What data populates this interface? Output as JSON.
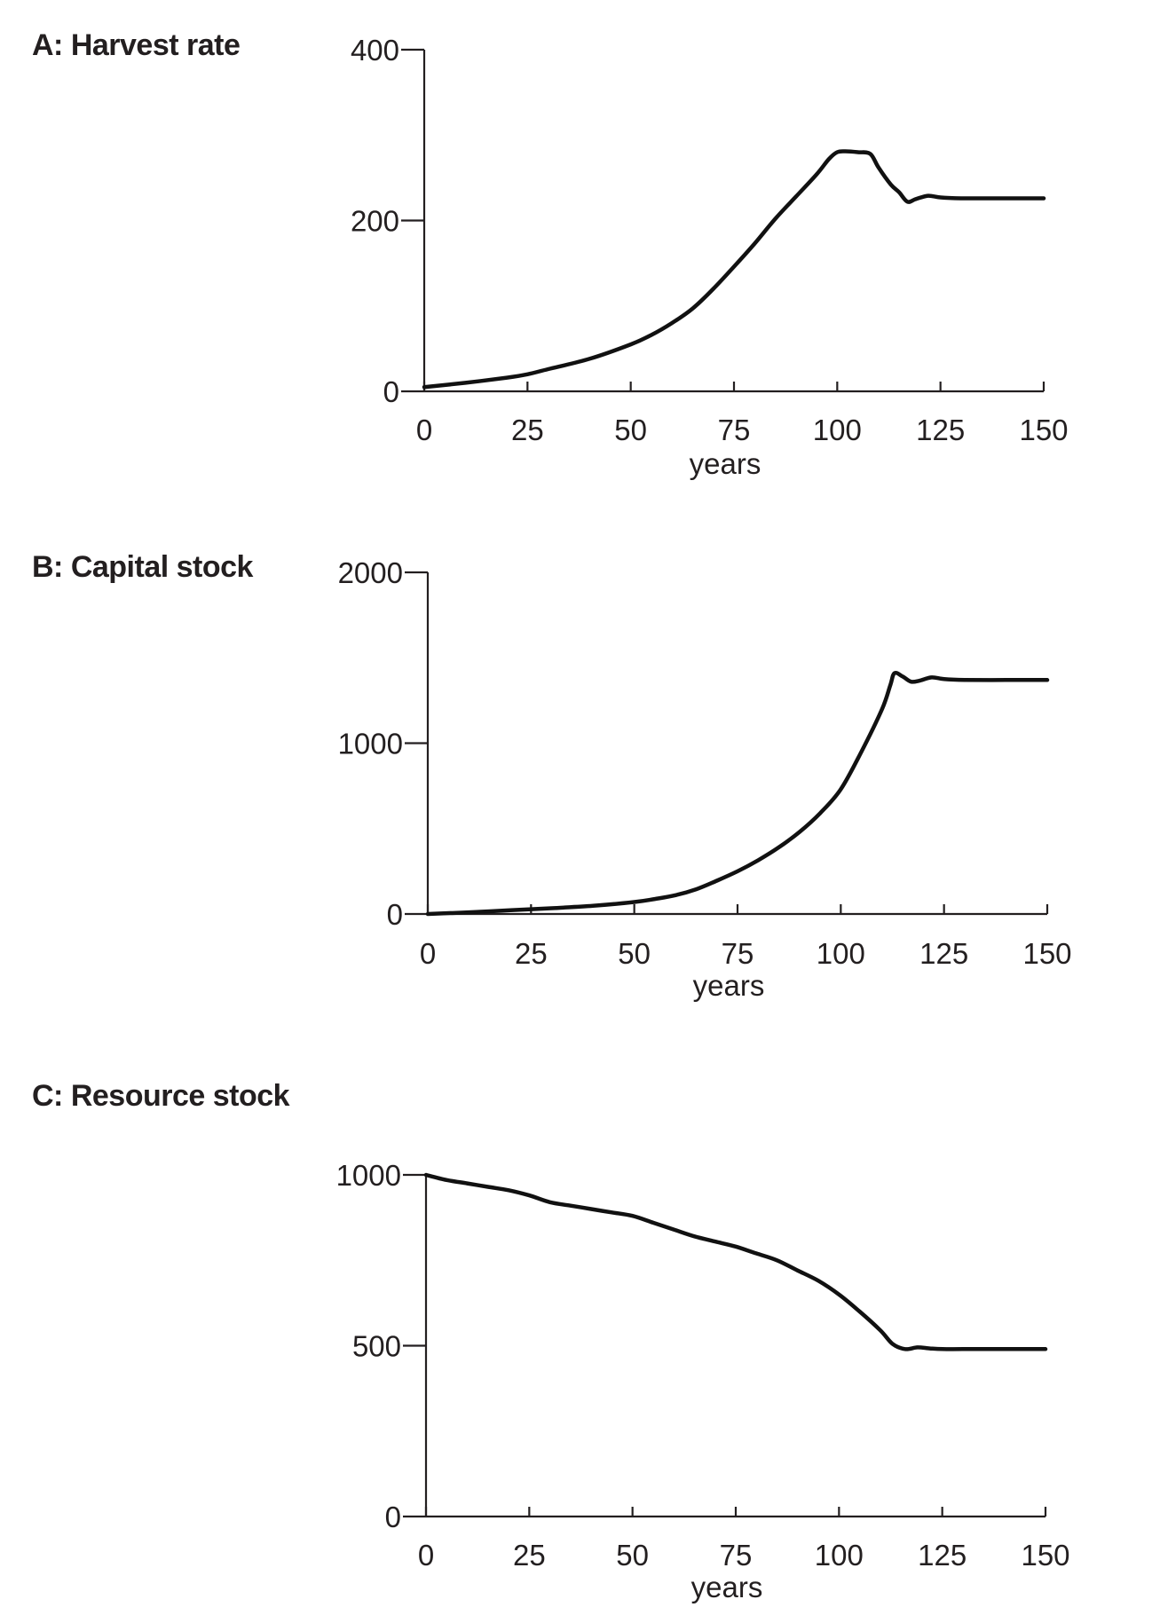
{
  "chart_data": [
    {
      "type": "line",
      "title": "A: Harvest rate",
      "xlabel": "years",
      "ylabel": "",
      "xlim": [
        0,
        150
      ],
      "ylim": [
        0,
        400
      ],
      "xticks": [
        0,
        25,
        50,
        75,
        100,
        125,
        150
      ],
      "yticks": [
        0,
        200,
        400
      ],
      "xtick_labels": [
        "0",
        "25",
        "50",
        "75",
        "100",
        "125",
        "150"
      ],
      "ytick_labels": [
        "0",
        "200",
        "400"
      ],
      "grid": false,
      "series": [
        {
          "x": [
            0,
            10,
            20,
            25,
            30,
            40,
            50,
            55,
            60,
            65,
            70,
            75,
            80,
            85,
            90,
            95,
            98,
            100,
            102,
            105,
            108,
            110,
            113,
            115,
            117,
            119,
            122,
            125,
            130,
            140,
            150
          ],
          "y": [
            5,
            10,
            16,
            20,
            26,
            38,
            55,
            66,
            80,
            97,
            120,
            146,
            173,
            202,
            228,
            254,
            272,
            280,
            281,
            280,
            278,
            262,
            242,
            233,
            222,
            225,
            229,
            227,
            226,
            226,
            226
          ]
        }
      ]
    },
    {
      "type": "line",
      "title": "B: Capital stock",
      "xlabel": "years",
      "ylabel": "",
      "xlim": [
        0,
        150
      ],
      "ylim": [
        0,
        2000
      ],
      "xticks": [
        0,
        25,
        50,
        75,
        100,
        125,
        150
      ],
      "yticks": [
        0,
        1000,
        2000
      ],
      "xtick_labels": [
        "0",
        "25",
        "50",
        "75",
        "100",
        "125",
        "150"
      ],
      "ytick_labels": [
        "0",
        "1000",
        "2000"
      ],
      "grid": false,
      "series": [
        {
          "x": [
            0,
            10,
            20,
            30,
            40,
            50,
            55,
            60,
            65,
            70,
            75,
            80,
            85,
            90,
            95,
            100,
            105,
            110,
            112,
            113,
            115,
            117,
            119,
            122,
            125,
            130,
            140,
            150
          ],
          "y": [
            0,
            10,
            22,
            34,
            48,
            70,
            88,
            110,
            145,
            195,
            250,
            315,
            390,
            480,
            590,
            730,
            950,
            1200,
            1340,
            1410,
            1390,
            1360,
            1365,
            1385,
            1375,
            1370,
            1370,
            1370
          ]
        }
      ]
    },
    {
      "type": "line",
      "title": "C: Resource stock",
      "xlabel": "years",
      "ylabel": "",
      "xlim": [
        0,
        150
      ],
      "ylim": [
        0,
        1000
      ],
      "xticks": [
        0,
        25,
        50,
        75,
        100,
        125,
        150
      ],
      "yticks": [
        0,
        500,
        1000
      ],
      "xtick_labels": [
        "0",
        "25",
        "50",
        "75",
        "100",
        "125",
        "150"
      ],
      "ytick_labels": [
        "0",
        "500",
        "1000"
      ],
      "grid": false,
      "series": [
        {
          "x": [
            0,
            5,
            10,
            15,
            20,
            25,
            30,
            35,
            40,
            45,
            50,
            55,
            60,
            65,
            70,
            75,
            80,
            85,
            90,
            95,
            100,
            105,
            110,
            113,
            116,
            119,
            122,
            125,
            130,
            140,
            150
          ],
          "y": [
            1000,
            985,
            975,
            965,
            955,
            940,
            920,
            910,
            900,
            890,
            880,
            860,
            840,
            820,
            805,
            790,
            770,
            750,
            720,
            690,
            650,
            600,
            545,
            505,
            490,
            495,
            492,
            490,
            490,
            490,
            490
          ]
        }
      ]
    }
  ]
}
